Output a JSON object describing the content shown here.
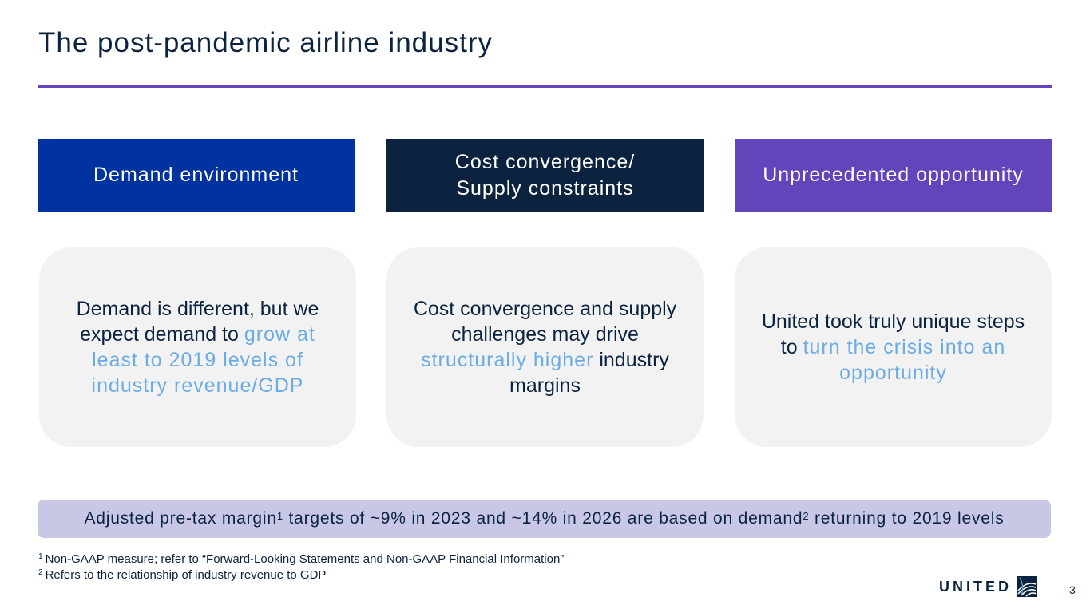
{
  "title": "The post-pandemic airline industry",
  "columns": [
    {
      "header_line1": "Demand environment",
      "header_line2": "",
      "body_parts": [
        {
          "text": "Demand is different, but we expect demand to ",
          "highlight": false
        },
        {
          "text": "grow at least to 2019 levels of industry revenue/GDP",
          "highlight": true
        }
      ]
    },
    {
      "header_line1": "Cost convergence/",
      "header_line2": "Supply constraints",
      "body_parts": [
        {
          "text": "Cost convergence and supply challenges may drive ",
          "highlight": false
        },
        {
          "text": "structurally higher",
          "highlight": true
        },
        {
          "text": " industry margins",
          "highlight": false
        }
      ]
    },
    {
      "header_line1": "Unprecedented opportunity",
      "header_line2": "",
      "body_parts": [
        {
          "text": "United took truly unique steps to ",
          "highlight": false
        },
        {
          "text": "turn the crisis into an opportunity",
          "highlight": true
        }
      ]
    }
  ],
  "banner": {
    "part1": "Adjusted pre-tax margin",
    "sup1": "1",
    "part2": " targets of ~9% in 2023 and ~14% in 2026 are based on demand",
    "sup2": "2",
    "part3": " returning to 2019 levels"
  },
  "footnotes": [
    {
      "num": "1",
      "text": "Non-GAAP measure; refer to “Forward-Looking Statements and Non-GAAP Financial Information”"
    },
    {
      "num": "2",
      "text": "Refers to the relationship of industry revenue to GDP"
    }
  ],
  "logo_text": "UNITED",
  "page_number": "3",
  "colors": {
    "navy": "#0c2340",
    "blue": "#0033a0",
    "purple": "#6244bb",
    "highlight": "#6cace4",
    "card_bg": "#f2f2f2",
    "banner_bg": "#c8c8e6"
  }
}
